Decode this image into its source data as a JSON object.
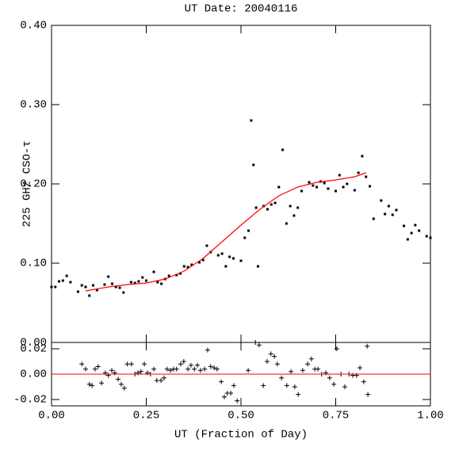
{
  "chart_data": [
    {
      "type": "scatter",
      "title": "UT Date: 20040116",
      "ylabel": "225 GHz CSO-τ",
      "xlim": [
        0,
        1
      ],
      "xticks": [
        0,
        0.25,
        0.5,
        0.75,
        1
      ],
      "ylim": [
        0,
        0.4
      ],
      "yticks": [
        {
          "value": 0,
          "label": "0.00"
        },
        {
          "value": 0.1,
          "label": "0.10"
        },
        {
          "value": 0.2,
          "label": "0.20"
        },
        {
          "value": 0.3,
          "label": "0.30"
        },
        {
          "value": 0.4,
          "label": "0.40"
        }
      ],
      "series": [
        {
          "color": "#000000",
          "x": [
            0.0,
            0.01,
            0.02,
            0.03,
            0.04,
            0.05,
            0.07,
            0.08,
            0.09,
            0.1,
            0.11,
            0.12,
            0.14,
            0.15,
            0.16,
            0.17,
            0.18,
            0.19,
            0.21,
            0.22,
            0.23,
            0.24,
            0.25,
            0.27,
            0.28,
            0.29,
            0.3,
            0.31,
            0.33,
            0.34,
            0.35,
            0.36,
            0.37,
            0.39,
            0.4,
            0.41,
            0.42,
            0.44,
            0.45,
            0.46,
            0.47,
            0.48,
            0.5,
            0.51,
            0.52,
            0.527,
            0.533,
            0.54,
            0.545,
            0.56,
            0.57,
            0.58,
            0.59,
            0.6,
            0.61,
            0.62,
            0.63,
            0.64,
            0.65,
            0.66,
            0.68,
            0.69,
            0.7,
            0.71,
            0.72,
            0.73,
            0.75,
            0.76,
            0.77,
            0.78,
            0.8,
            0.81,
            0.82,
            0.83,
            0.84,
            0.85,
            0.87,
            0.88,
            0.89,
            0.9,
            0.91,
            0.93,
            0.94,
            0.95,
            0.96,
            0.97,
            0.99,
            1.0
          ],
          "values": [
            0.07,
            0.07,
            0.077,
            0.078,
            0.084,
            0.076,
            0.064,
            0.072,
            0.07,
            0.059,
            0.072,
            0.066,
            0.073,
            0.083,
            0.074,
            0.07,
            0.069,
            0.063,
            0.076,
            0.075,
            0.077,
            0.082,
            0.078,
            0.089,
            0.076,
            0.074,
            0.08,
            0.084,
            0.085,
            0.087,
            0.096,
            0.095,
            0.098,
            0.101,
            0.104,
            0.122,
            0.114,
            0.11,
            0.112,
            0.096,
            0.108,
            0.106,
            0.103,
            0.132,
            0.141,
            0.28,
            0.224,
            0.17,
            0.096,
            0.172,
            0.168,
            0.174,
            0.176,
            0.196,
            0.243,
            0.15,
            0.172,
            0.16,
            0.17,
            0.191,
            0.202,
            0.198,
            0.196,
            0.203,
            0.201,
            0.194,
            0.191,
            0.211,
            0.196,
            0.2,
            0.192,
            0.214,
            0.235,
            0.209,
            0.197,
            0.156,
            0.179,
            0.162,
            0.172,
            0.161,
            0.167,
            0.147,
            0.13,
            0.138,
            0.148,
            0.141,
            0.134,
            0.132
          ]
        }
      ],
      "fit": {
        "color": "#ff0000",
        "x": [
          0.09,
          0.15,
          0.2,
          0.25,
          0.3,
          0.35,
          0.4,
          0.45,
          0.5,
          0.55,
          0.6,
          0.65,
          0.7,
          0.75,
          0.8,
          0.83
        ],
        "values": [
          0.065,
          0.07,
          0.073,
          0.075,
          0.08,
          0.09,
          0.106,
          0.127,
          0.148,
          0.168,
          0.185,
          0.196,
          0.202,
          0.205,
          0.209,
          0.214
        ]
      }
    },
    {
      "type": "scatter",
      "xlabel": "UT (Fraction of Day)",
      "xlim": [
        0,
        1
      ],
      "xticks": [
        {
          "value": 0,
          "label": "0.00"
        },
        0.25,
        {
          "value": 0.5,
          "label": "0.50"
        },
        0.75,
        {
          "value": 1,
          "label": "1.00"
        }
      ],
      "ylim": [
        -0.025,
        0.025
      ],
      "yticks": [
        -0.02,
        {
          "value": 0,
          "label": "0.00"
        },
        0.02
      ],
      "hline": {
        "value": 0,
        "color": "#ff0000"
      },
      "series": [
        {
          "color": "#000000",
          "x": [
            0.08,
            0.09,
            0.1,
            0.107,
            0.115,
            0.123,
            0.132,
            0.142,
            0.15,
            0.159,
            0.167,
            0.176,
            0.184,
            0.192,
            0.2,
            0.211,
            0.22,
            0.228,
            0.236,
            0.245,
            0.253,
            0.261,
            0.27,
            0.278,
            0.289,
            0.297,
            0.305,
            0.314,
            0.322,
            0.33,
            0.341,
            0.349,
            0.36,
            0.368,
            0.377,
            0.385,
            0.393,
            0.404,
            0.412,
            0.42,
            0.429,
            0.437,
            0.448,
            0.456,
            0.464,
            0.473,
            0.481,
            0.49,
            0.519,
            0.538,
            0.548,
            0.559,
            0.569,
            0.579,
            0.588,
            0.596,
            0.607,
            0.621,
            0.632,
            0.642,
            0.651,
            0.663,
            0.676,
            0.686,
            0.695,
            0.703,
            0.713,
            0.724,
            0.734,
            0.745,
            0.753,
            0.764,
            0.774,
            0.785,
            0.795,
            0.805,
            0.814,
            0.824,
            0.833,
            0.835
          ],
          "values": [
            0.008,
            0.004,
            -0.008,
            -0.009,
            0.004,
            0.006,
            -0.007,
            0.001,
            -0.001,
            0.003,
            0.001,
            -0.004,
            -0.008,
            -0.011,
            0.008,
            0.008,
            0.0,
            0.001,
            0.002,
            0.008,
            0.001,
            0.0,
            0.004,
            -0.005,
            -0.005,
            -0.003,
            0.004,
            0.003,
            0.004,
            0.004,
            0.008,
            0.01,
            0.004,
            0.007,
            0.004,
            0.007,
            0.003,
            0.004,
            0.019,
            0.006,
            0.005,
            0.004,
            -0.006,
            -0.018,
            -0.015,
            -0.015,
            -0.009,
            -0.021,
            0.003,
            0.025,
            0.023,
            -0.009,
            0.01,
            0.016,
            0.014,
            0.008,
            -0.003,
            -0.009,
            0.002,
            -0.01,
            -0.016,
            0.003,
            0.008,
            0.012,
            0.004,
            0.004,
            0.0,
            0.001,
            -0.003,
            -0.008,
            0.02,
            0.0,
            -0.01,
            0.0,
            -0.001,
            -0.001,
            0.005,
            -0.006,
            0.022,
            -0.016
          ]
        }
      ]
    }
  ]
}
